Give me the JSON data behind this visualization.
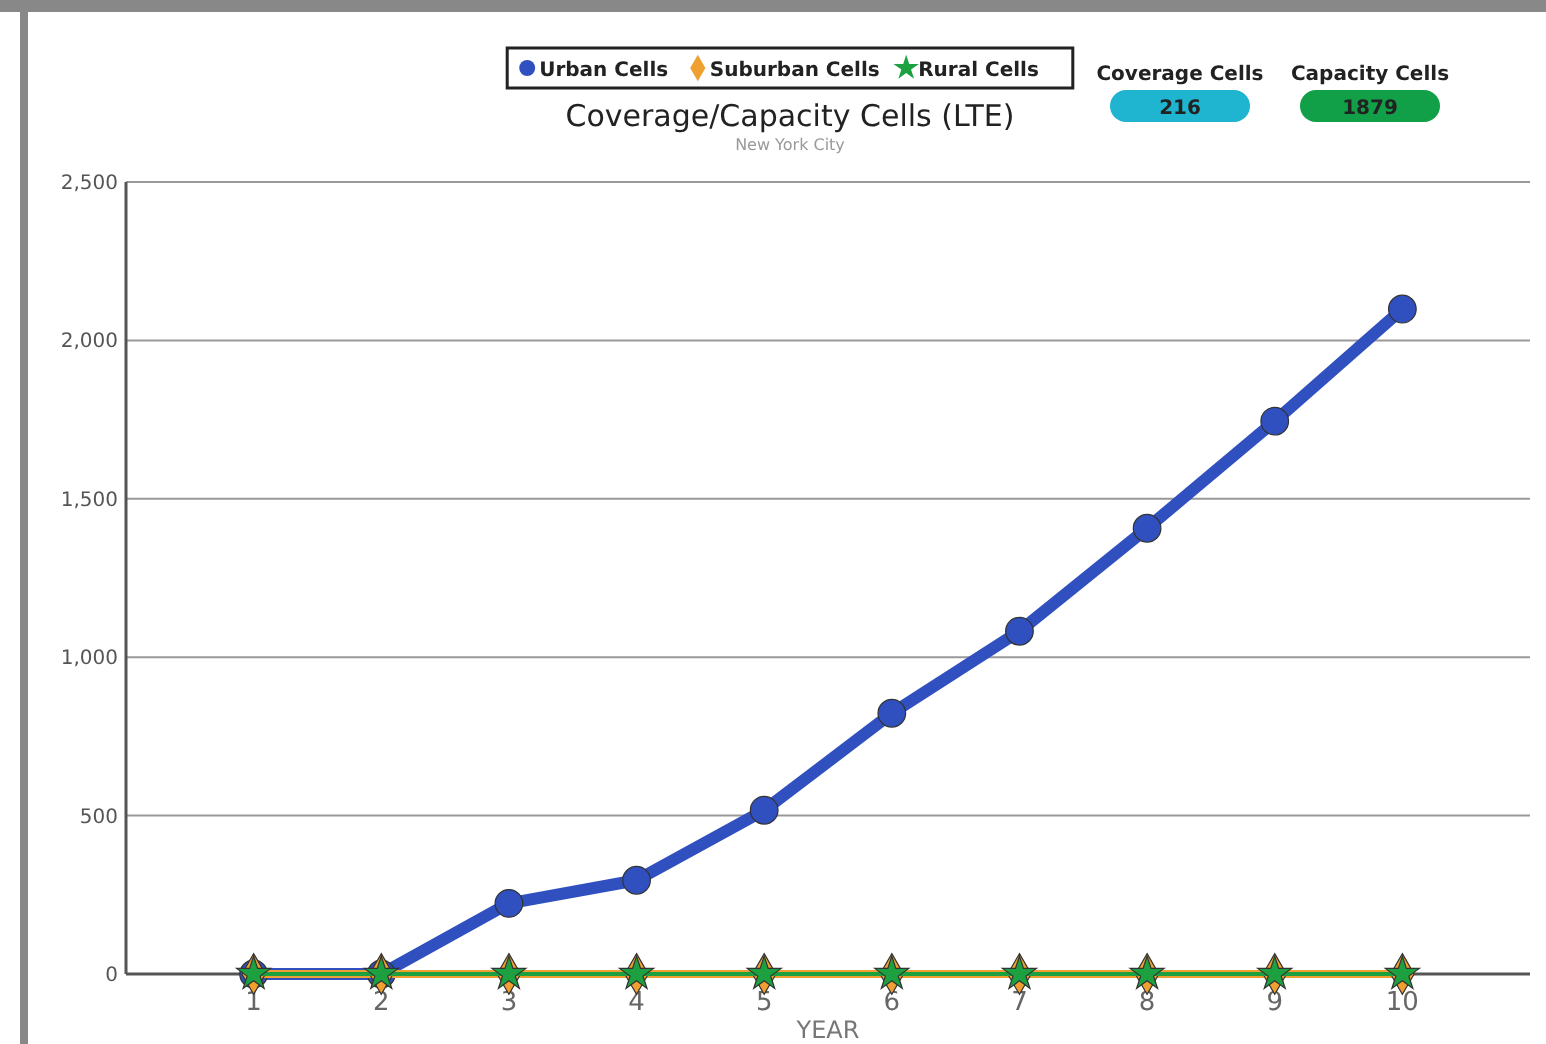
{
  "chart_data": {
    "type": "line",
    "title": "Coverage/Capacity Cells (LTE)",
    "subtitle": "New York City",
    "xlabel": "YEAR",
    "x": [
      1,
      2,
      3,
      4,
      5,
      6,
      7,
      8,
      9,
      10
    ],
    "xlim": [
      0,
      11
    ],
    "xticks": [
      1,
      2,
      3,
      4,
      5,
      6,
      7,
      8,
      9,
      10
    ],
    "ylim": [
      0,
      2500
    ],
    "yticks": [
      {
        "value": 0,
        "label": "0"
      },
      {
        "value": 500,
        "label": "500"
      },
      {
        "value": 1000,
        "label": "1,000"
      },
      {
        "value": 1500,
        "label": "1,500"
      },
      {
        "value": 2000,
        "label": "2,000"
      },
      {
        "value": 2500,
        "label": "2,500"
      }
    ],
    "grid": "y",
    "legend": "top",
    "series": [
      {
        "name": "Urban Cells",
        "color": "#3050c0",
        "marker": "circle",
        "values": [
          0,
          0,
          223,
          296,
          517,
          823,
          1082,
          1407,
          1745,
          2099
        ]
      },
      {
        "name": "Suburban Cells",
        "color": "#f0a030",
        "marker": "diamond",
        "values": [
          0,
          0,
          0,
          0,
          0,
          0,
          0,
          0,
          0,
          0
        ]
      },
      {
        "name": "Rural Cells",
        "color": "#1ca040",
        "marker": "star",
        "values": [
          0,
          0,
          0,
          0,
          0,
          0,
          0,
          0,
          0,
          0
        ]
      }
    ],
    "annotations": [
      "Coverage Cells",
      "216",
      "Capacity Cells",
      "1879"
    ]
  }
}
